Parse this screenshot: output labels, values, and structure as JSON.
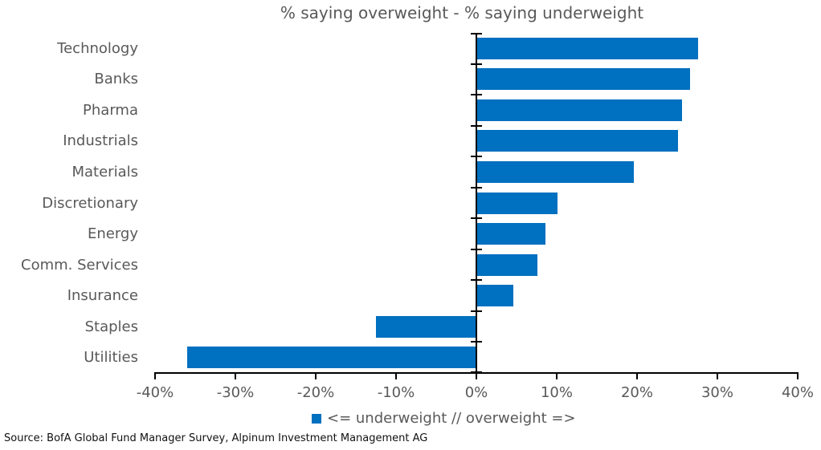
{
  "chart_data": {
    "type": "bar",
    "orientation": "horizontal",
    "title": "% saying overweight - % saying underweight",
    "categories": [
      "Technology",
      "Banks",
      "Pharma",
      "Industrials",
      "Materials",
      "Discretionary",
      "Energy",
      "Comm. Services",
      "Insurance",
      "Staples",
      "Utilities"
    ],
    "values": [
      27.5,
      26.5,
      25.5,
      25,
      19.5,
      10,
      8.5,
      7.5,
      4.5,
      -12.5,
      -36
    ],
    "xlim": [
      -40,
      40
    ],
    "x_tick_step": 10,
    "x_tick_labels": [
      "-40%",
      "-30%",
      "-20%",
      "-10%",
      "0%",
      "10%",
      "20%",
      "30%",
      "40%"
    ],
    "grid": false,
    "legend": {
      "position": "bottom",
      "marker": "square",
      "label": "<= underweight // overweight =>"
    },
    "colors": {
      "bar": "#0070c0",
      "text": "#595959",
      "axis": "#000000",
      "source_text": "#111111"
    }
  },
  "source_note": "Source: BofA Global Fund Manager Survey, Alpinum Investment Management AG"
}
